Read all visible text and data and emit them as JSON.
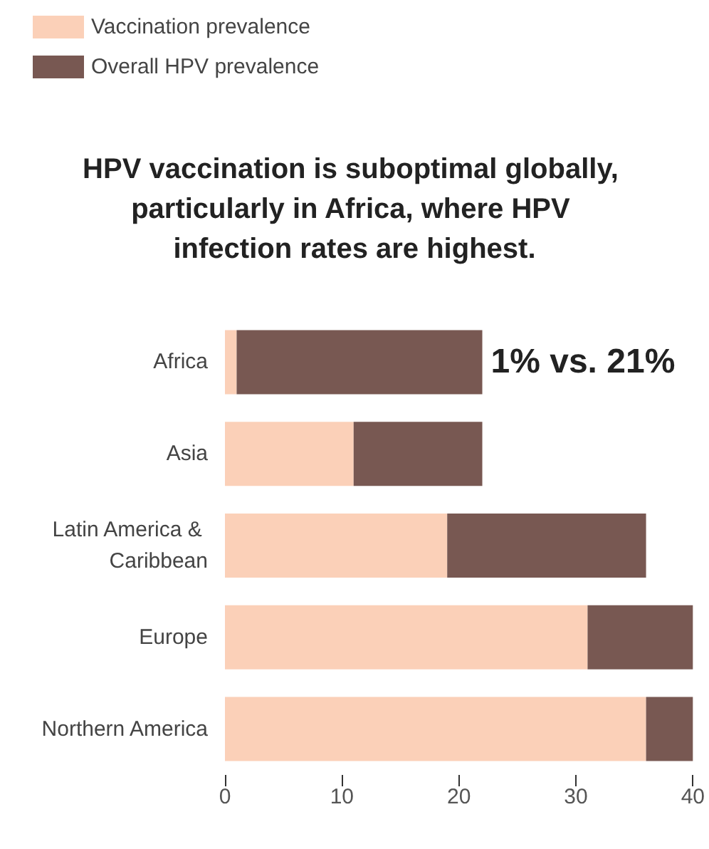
{
  "chart_data": {
    "type": "bar",
    "title": "HPV vaccination is suboptimal globally, particularly in Africa, where HPV infection rates are highest.",
    "orientation": "horizontal",
    "stacked": true,
    "categories": [
      "Africa",
      "Asia",
      "Latin America & Caribbean",
      "Europe",
      "Northern America"
    ],
    "series": [
      {
        "name": "Vaccination prevalence",
        "color": "#fbd0b8",
        "values": [
          1,
          11,
          19,
          31,
          36
        ]
      },
      {
        "name": "Overall HPV prevalence",
        "color": "#785852",
        "values": [
          21,
          11,
          17,
          9,
          4
        ]
      }
    ],
    "xlim": [
      0,
      40
    ],
    "xticks": [
      0,
      10,
      20,
      30,
      40
    ],
    "annotations": [
      {
        "text": "1% vs. 21%",
        "x": 22,
        "y": "Africa"
      }
    ],
    "grid": false,
    "legend": "top left"
  }
}
